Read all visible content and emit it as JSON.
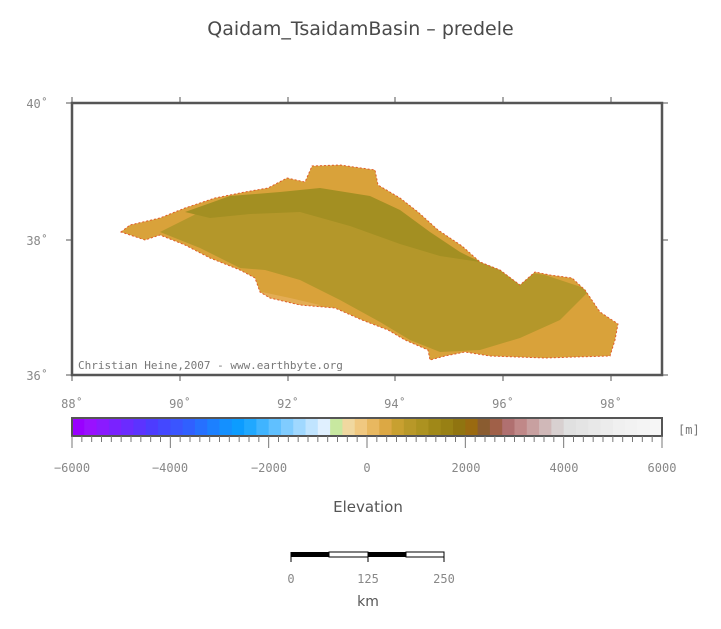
{
  "title": "Qaidam_TsaidamBasin – predele",
  "map": {
    "lat_ticks": [
      "40˚",
      "38˚",
      "36˚"
    ],
    "lon_ticks": [
      "88˚",
      "90˚",
      "92˚",
      "94˚",
      "96˚",
      "98˚"
    ],
    "credit": "Christian Heine,2007 - www.earthbyte.org",
    "colors": {
      "frame": "#555555",
      "basin_low": "#d9a23a",
      "basin_mid": "#b4972a",
      "basin_high": "#a38f22",
      "outline": "#e05a2a"
    }
  },
  "colorbar": {
    "unit": "[m]",
    "tick_labels": [
      "−6000",
      "−4000",
      "−2000",
      "0",
      "2000",
      "4000",
      "6000"
    ],
    "title": "Elevation"
  },
  "scalebar": {
    "labels": [
      "0",
      "125",
      "250"
    ],
    "unit": "km"
  }
}
